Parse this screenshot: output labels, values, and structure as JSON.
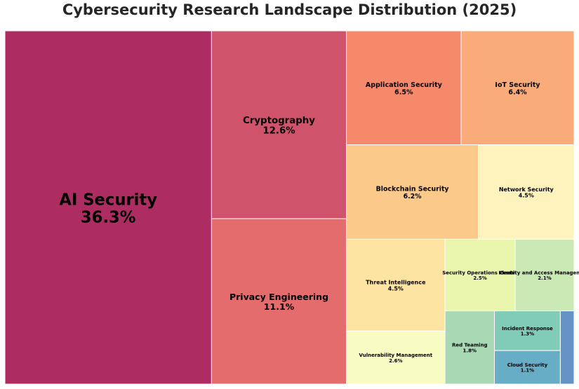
{
  "chart_data": {
    "type": "treemap",
    "title": "Cybersecurity Research Landscape Distribution (2025)",
    "unit": "%",
    "items": [
      {
        "name": "AI Security",
        "value": 36.3,
        "label": "36.3%",
        "color": "#ad2d62"
      },
      {
        "name": "Cryptography",
        "value": 12.6,
        "label": "12.6%",
        "color": "#cf536b"
      },
      {
        "name": "Privacy Engineering",
        "value": 11.1,
        "label": "11.1%",
        "color": "#e46c6c"
      },
      {
        "name": "Application Security",
        "value": 6.5,
        "label": "6.5%",
        "color": "#f5896a"
      },
      {
        "name": "IoT Security",
        "value": 6.4,
        "label": "6.4%",
        "color": "#f9ab79"
      },
      {
        "name": "Blockchain Security",
        "value": 6.2,
        "label": "6.2%",
        "color": "#fbca8b"
      },
      {
        "name": "Network Security",
        "value": 4.5,
        "label": "4.5%",
        "color": "#fef3bd"
      },
      {
        "name": "Threat Intelligence",
        "value": 4.5,
        "label": "4.5%",
        "color": "#fde4a2"
      },
      {
        "name": "Vulnerability Management",
        "value": 2.6,
        "label": "2.6%",
        "color": "#f8fbc2"
      },
      {
        "name": "Security Operations Center",
        "value": 2.5,
        "label": "2.5%",
        "color": "#eaf6ae"
      },
      {
        "name": "Identity and Access Management",
        "value": 2.1,
        "label": "2.1%",
        "color": "#cbe9b4"
      },
      {
        "name": "Red Teaming",
        "value": 1.8,
        "label": "1.8%",
        "color": "#a8d9b4"
      },
      {
        "name": "Incident Response",
        "value": 1.3,
        "label": "1.3%",
        "color": "#80ccb6"
      },
      {
        "name": "Cloud Security",
        "value": 1.1,
        "label": "1.1%",
        "color": "#67adc5"
      },
      {
        "name": "",
        "value": 0.5,
        "label": "",
        "color": "#6593c6"
      }
    ]
  }
}
